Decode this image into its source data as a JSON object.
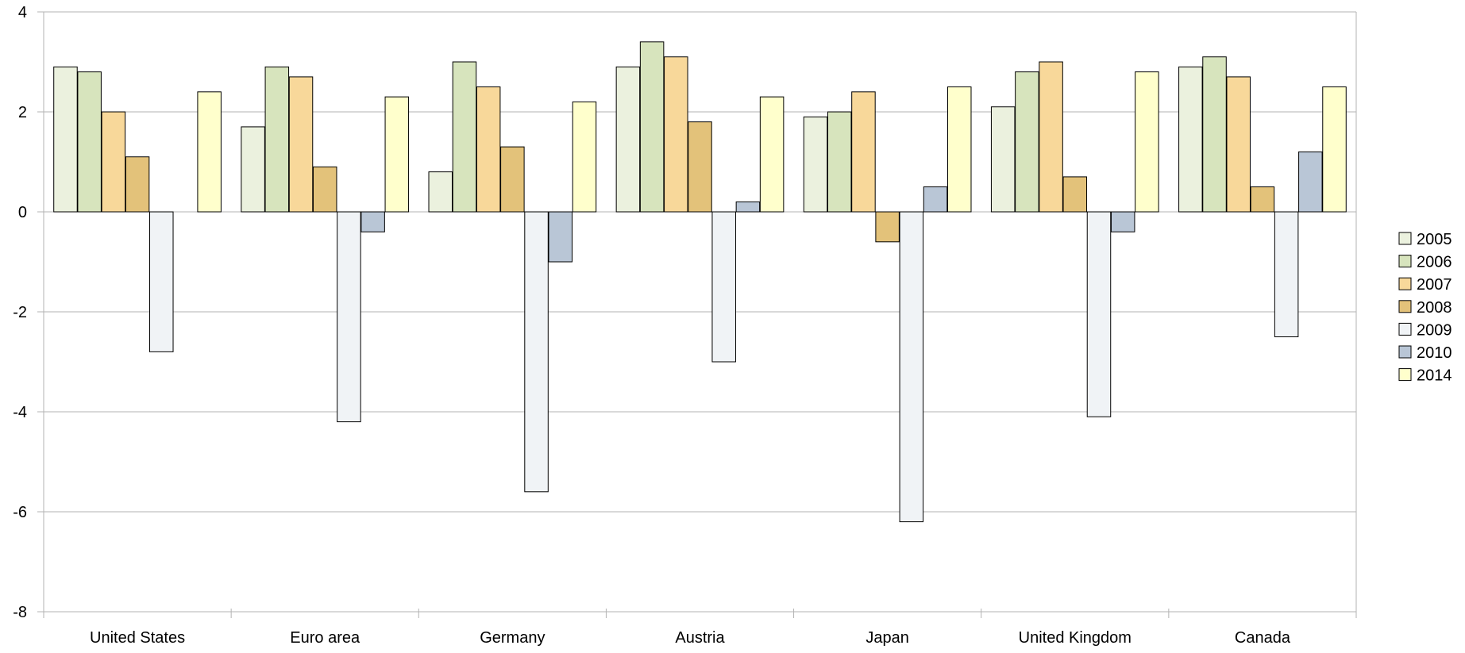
{
  "chart_data": {
    "type": "bar",
    "title": "",
    "xlabel": "",
    "ylabel": "",
    "categories": [
      "United States",
      "Euro area",
      "Germany",
      "Austria",
      "Japan",
      "United Kingdom",
      "Canada"
    ],
    "ylim": [
      -8,
      4
    ],
    "yticks": [
      4,
      2,
      0,
      -2,
      -4,
      -6,
      -8
    ],
    "grid": true,
    "legend_position": "right",
    "series": [
      {
        "name": "2005",
        "color": "#EBF1DE",
        "values": [
          2.9,
          1.7,
          0.8,
          2.9,
          1.9,
          2.1,
          2.9
        ]
      },
      {
        "name": "2006",
        "color": "#D7E4BD",
        "values": [
          2.8,
          2.9,
          3.0,
          3.4,
          2.0,
          2.8,
          3.1
        ]
      },
      {
        "name": "2007",
        "color": "#F8D89A",
        "values": [
          2.0,
          2.7,
          2.5,
          3.1,
          2.4,
          3.0,
          2.7
        ]
      },
      {
        "name": "2008",
        "color": "#E3C27A",
        "values": [
          1.1,
          0.9,
          1.3,
          1.8,
          -0.6,
          0.7,
          0.5
        ]
      },
      {
        "name": "2009",
        "color": "#F0F3F6",
        "values": [
          -2.8,
          -4.2,
          -5.6,
          -3.0,
          -6.2,
          -4.1,
          -2.5
        ]
      },
      {
        "name": "2010",
        "color": "#B9C6D6",
        "values": [
          0.0,
          -0.4,
          -1.0,
          0.2,
          0.5,
          -0.4,
          1.2
        ]
      },
      {
        "name": "2014",
        "color": "#FFFFCC",
        "values": [
          2.4,
          2.3,
          2.2,
          2.3,
          2.5,
          2.8,
          2.5
        ]
      }
    ]
  }
}
